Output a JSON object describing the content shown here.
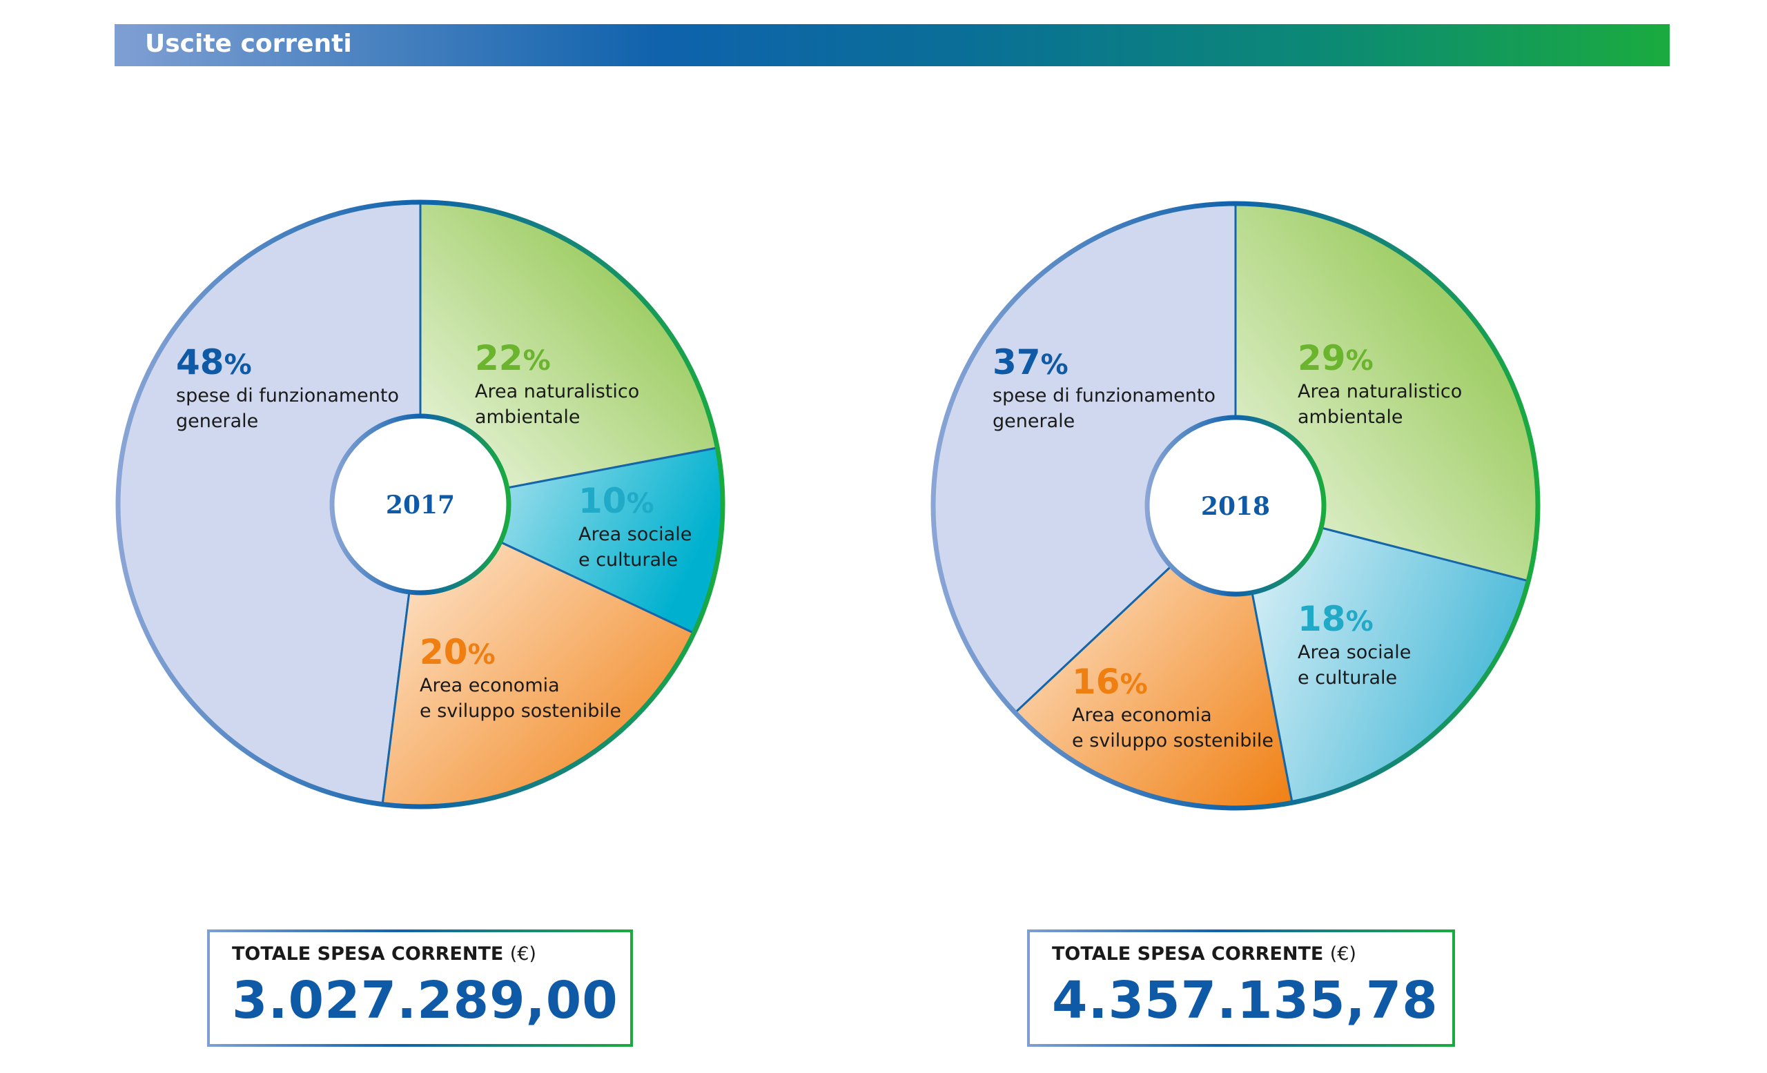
{
  "header": {
    "title": "Uscite correnti"
  },
  "chart_data": [
    {
      "type": "pie",
      "center_label": "2017",
      "slices": [
        {
          "value": 48,
          "label_lines": [
            "spese di funzionamento",
            "generale"
          ],
          "color": "#cfd8ee",
          "pct_color": "#0f5aa6"
        },
        {
          "value": 22,
          "label_lines": [
            "Area naturalistico",
            "ambientale"
          ],
          "color": "#a2cf6a",
          "pct_color": "#6ab42e"
        },
        {
          "value": 10,
          "label_lines": [
            "Area sociale",
            "e culturale"
          ],
          "color": "#2cb8d3",
          "pct_color": "#20aac8"
        },
        {
          "value": 20,
          "label_lines": [
            "Area economia",
            "e sviluppo sostenibile"
          ],
          "color": "#f39a45",
          "pct_color": "#f07f12"
        }
      ],
      "total": {
        "label": "TOTALE SPESA CORRENTE",
        "unit": "(€)",
        "value": "3.027.289,00"
      }
    },
    {
      "type": "pie",
      "center_label": "2018",
      "slices": [
        {
          "value": 37,
          "label_lines": [
            "spese di funzionamento",
            "generale"
          ],
          "color": "#cfd8ee",
          "pct_color": "#0f5aa6"
        },
        {
          "value": 29,
          "label_lines": [
            "Area naturalistico",
            "ambientale"
          ],
          "color": "#a2cf6a",
          "pct_color": "#6ab42e"
        },
        {
          "value": 18,
          "label_lines": [
            "Area sociale",
            "e culturale"
          ],
          "color": "#62c3dc",
          "pct_color": "#20aac8"
        },
        {
          "value": 16,
          "label_lines": [
            "Area economia",
            "e sviluppo sostenibile"
          ],
          "color": "#f39a45",
          "pct_color": "#f07f12"
        }
      ],
      "total": {
        "label": "TOTALE SPESA CORRENTE",
        "unit": "(€)",
        "value": "4.357.135,78"
      }
    }
  ]
}
